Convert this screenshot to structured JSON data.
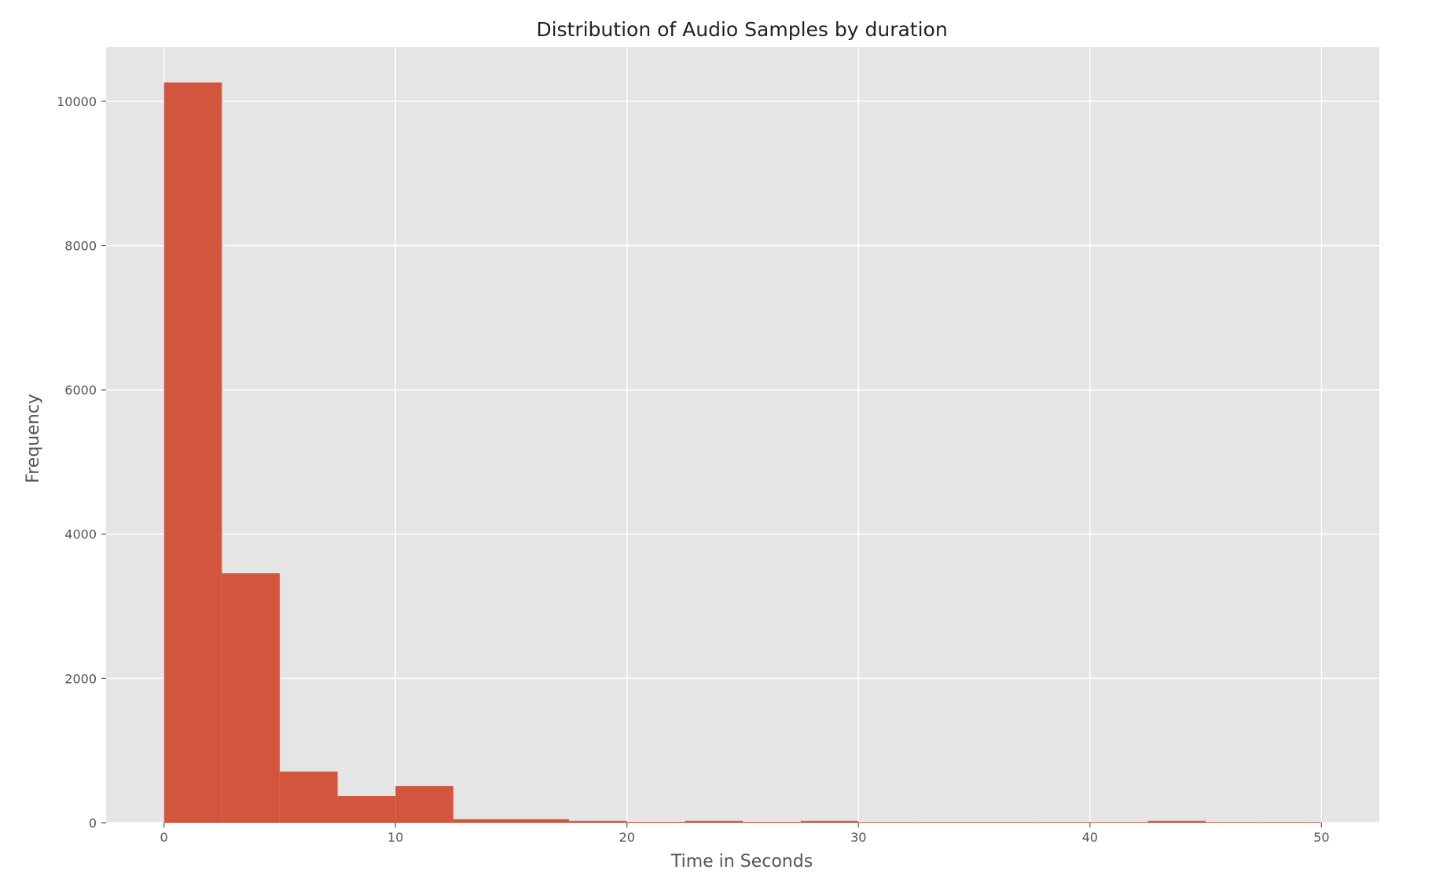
{
  "chart_data": {
    "type": "bar",
    "title": "Distribution of Audio Samples by duration",
    "xlabel": "Time in Seconds",
    "ylabel": "Frequency",
    "xlim": [
      -2.5,
      52.5
    ],
    "ylim": [
      0,
      10750
    ],
    "xticks": [
      0,
      10,
      20,
      30,
      40,
      50
    ],
    "yticks": [
      0,
      2000,
      4000,
      6000,
      8000,
      10000
    ],
    "grid": true,
    "colors": {
      "bar": "#d2553e",
      "plot_background": "#e5e5e5",
      "grid": "#ffffff",
      "figure_background": "#ffffff"
    },
    "bin_width": 2.5,
    "bins": [
      {
        "start": 0,
        "end": 2.5,
        "value": 10260
      },
      {
        "start": 2.5,
        "end": 5,
        "value": 3460
      },
      {
        "start": 5,
        "end": 7.5,
        "value": 710
      },
      {
        "start": 7.5,
        "end": 10,
        "value": 370
      },
      {
        "start": 10,
        "end": 12.5,
        "value": 510
      },
      {
        "start": 12.5,
        "end": 15,
        "value": 50
      },
      {
        "start": 15,
        "end": 17.5,
        "value": 50
      },
      {
        "start": 17.5,
        "end": 20,
        "value": 25
      },
      {
        "start": 20,
        "end": 22.5,
        "value": 10
      },
      {
        "start": 22.5,
        "end": 25,
        "value": 25
      },
      {
        "start": 25,
        "end": 27.5,
        "value": 10
      },
      {
        "start": 27.5,
        "end": 30,
        "value": 25
      },
      {
        "start": 30,
        "end": 32.5,
        "value": 8
      },
      {
        "start": 32.5,
        "end": 35,
        "value": 8
      },
      {
        "start": 35,
        "end": 37.5,
        "value": 8
      },
      {
        "start": 37.5,
        "end": 40,
        "value": 8
      },
      {
        "start": 40,
        "end": 42.5,
        "value": 8
      },
      {
        "start": 42.5,
        "end": 45,
        "value": 25
      },
      {
        "start": 45,
        "end": 47.5,
        "value": 8
      },
      {
        "start": 47.5,
        "end": 50,
        "value": 8
      }
    ]
  }
}
